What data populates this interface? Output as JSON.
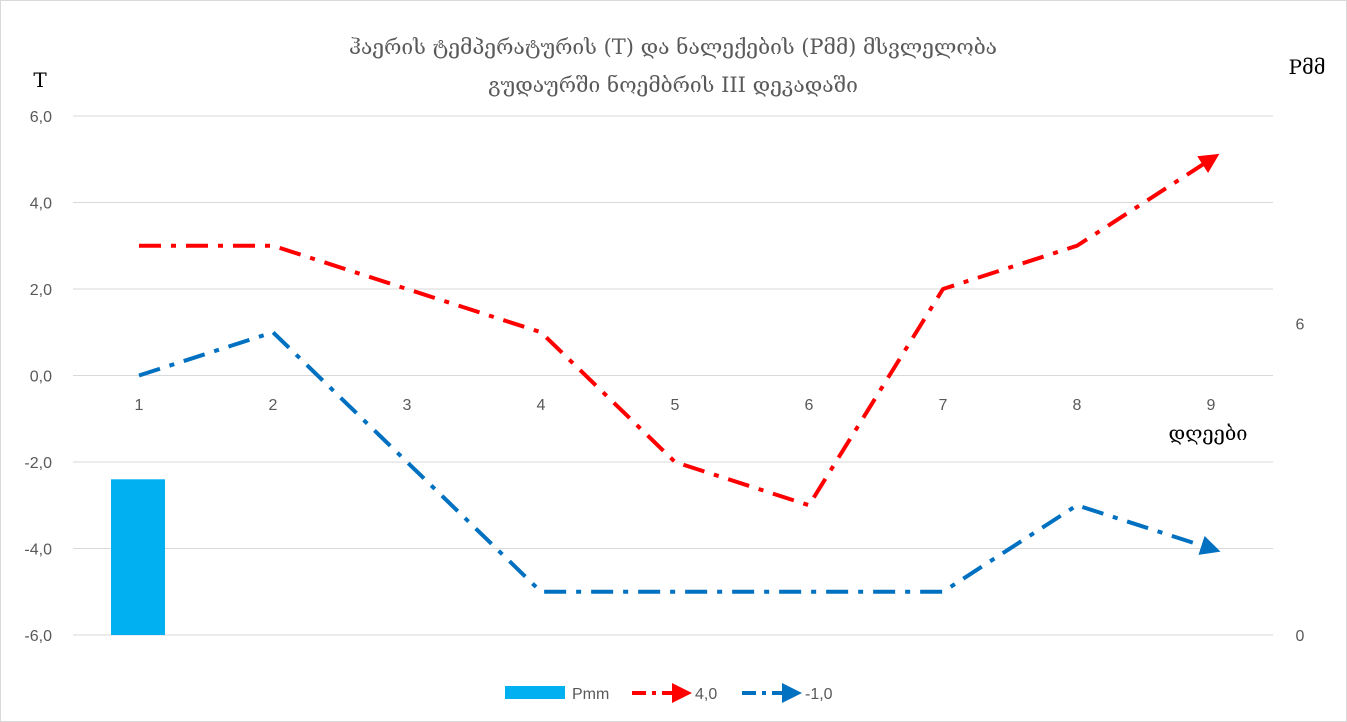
{
  "chart_data": {
    "type": "line",
    "title_lines": [
      "ჰაერის ტემპერატურის (T) და ნალექების (Pმმ)  მსვლელობა",
      "გუდაურში ნოემბრის III  დეკადაში"
    ],
    "y_left_label": "T",
    "y_right_label": "Pმმ",
    "x_label": "დღეები",
    "categories": [
      "1",
      "2",
      "3",
      "4",
      "5",
      "6",
      "7",
      "8",
      "9"
    ],
    "y_left_ticks": [
      "6,0",
      "4,0",
      "2,0",
      "0,0",
      "-2,0",
      "-4,0",
      "-6,0"
    ],
    "y_right_ticks": [
      "6",
      "0"
    ],
    "ylim_left": [
      -6,
      6
    ],
    "ylim_right": [
      0,
      10
    ],
    "grid": true,
    "legend_position": "bottom",
    "series": [
      {
        "name": "Pmm",
        "kind": "bar",
        "axis": "right",
        "color": "#00b0f0",
        "values": [
          3.0,
          null,
          null,
          null,
          null,
          null,
          null,
          null,
          null
        ]
      },
      {
        "name": "4,0",
        "kind": "line",
        "axis": "left",
        "color": "#ff0000",
        "style": "dash-dot",
        "values": [
          3.0,
          3.0,
          2.0,
          1.0,
          -2.0,
          -3.0,
          2.0,
          3.0,
          5.0
        ]
      },
      {
        "name": "-1,0",
        "kind": "line",
        "axis": "left",
        "color": "#0070c0",
        "style": "dash-dot",
        "values": [
          0.0,
          1.0,
          -2.0,
          -5.0,
          -5.0,
          -5.0,
          -5.0,
          -3.0,
          -4.0
        ]
      }
    ]
  }
}
